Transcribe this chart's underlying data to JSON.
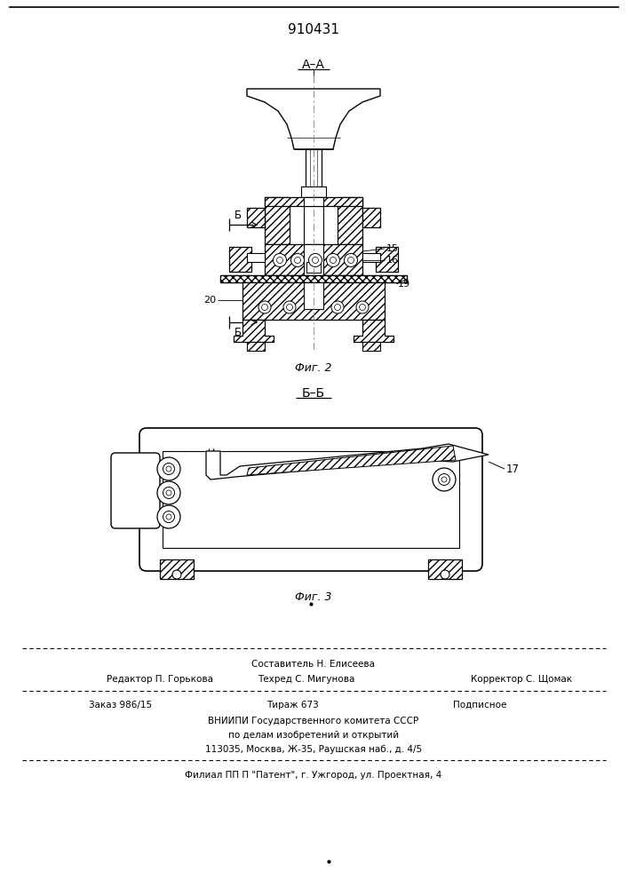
{
  "title": "910431",
  "background_color": "#ffffff",
  "fig_label_AA": "А–А",
  "fig_label_2": "Фиг. 2",
  "fig_label_BB": "Б–Б",
  "fig_label_3": "Фиг. 3",
  "label_15": "15",
  "label_16": "16",
  "label_19": "19",
  "label_20": "20",
  "label_17": "17",
  "label_B_upper": "Б",
  "label_B_lower": "Б",
  "footer_line1": "Составитель Н. Елисеева",
  "footer_line2_left": "Редактор П. Горькова",
  "footer_line2_mid": "Техред С. Мигунова",
  "footer_line2_right": "Корректор С. Щомак",
  "footer_line3_left": "Заказ 986/15",
  "footer_line3_mid": "Тираж 673",
  "footer_line3_right": "Подписное",
  "footer_line4": "ВНИИПИ Государственного комитета СССР",
  "footer_line5": "по делам изобретений и открытий",
  "footer_line6": "113035, Москва, Ж-35, Раушская наб., д. 4/5",
  "footer_line7": "Филиал ПП П \"Патент\", г. Ужгород, ул. Проектная, 4",
  "line_color": "#000000"
}
